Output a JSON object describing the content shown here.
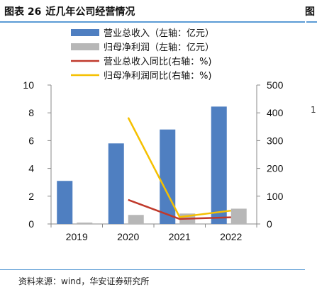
{
  "figure": {
    "number": "图表 26",
    "title": "近几年公司经营情况",
    "right_cut_label": "图",
    "right_fragment": "1",
    "source": "资料来源：wind，华安证券研究所"
  },
  "colors": {
    "accent_rule": "#5b9bd5",
    "bar_revenue": "#4f7fc1",
    "bar_profit": "#b7b7b7",
    "line_revenue_yoy": "#c0392b",
    "line_profit_yoy": "#f5c000"
  },
  "chart_data": {
    "type": "bar",
    "categories": [
      "2019",
      "2020",
      "2021",
      "2022"
    ],
    "series": [
      {
        "name": "营业总收入（左轴：亿元）",
        "kind": "bar",
        "axis": "left",
        "values": [
          3.1,
          5.8,
          6.8,
          8.45
        ]
      },
      {
        "name": "归母净利润（左轴：亿元）",
        "kind": "bar",
        "axis": "left",
        "values": [
          0.1,
          0.65,
          0.75,
          1.1
        ]
      },
      {
        "name": "营业总收入同比(右轴：%)",
        "kind": "line",
        "axis": "right",
        "values": [
          null,
          87,
          18,
          24
        ]
      },
      {
        "name": "归母净利润同比(右轴：%)",
        "kind": "line",
        "axis": "right",
        "values": [
          null,
          383,
          25,
          48
        ]
      }
    ],
    "yleft": {
      "ylim": [
        0,
        10
      ],
      "ticks": [
        0,
        2,
        4,
        6,
        8,
        10
      ]
    },
    "yright": {
      "ylim": [
        0,
        500
      ],
      "ticks": [
        0,
        100,
        200,
        300,
        400,
        500
      ]
    },
    "grid": false,
    "legend_position": "top-center"
  }
}
